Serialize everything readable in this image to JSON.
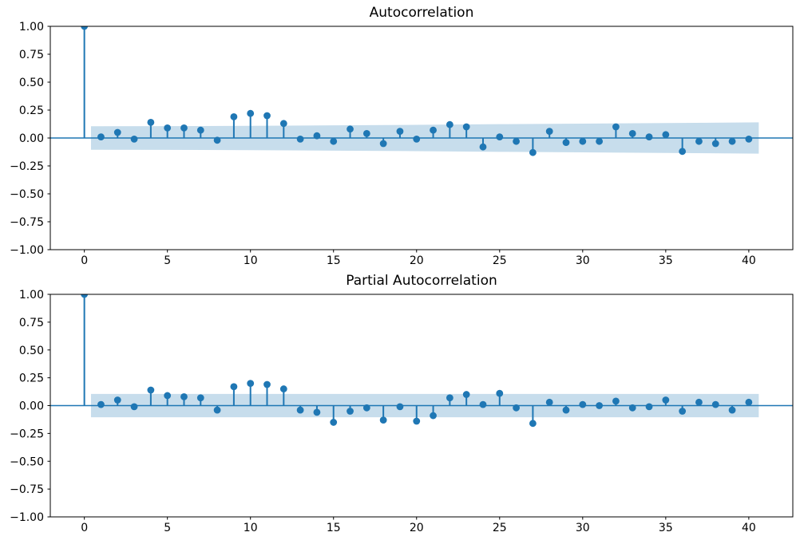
{
  "colors": {
    "accent": "#1f77b4",
    "band_fill": "#1f77b4",
    "band_opacity": 0.25,
    "spine": "#000000",
    "text": "#000000",
    "background": "#ffffff"
  },
  "chart_data": [
    {
      "type": "stem",
      "title": "Autocorrelation",
      "xlabel": "",
      "ylabel": "",
      "grid": false,
      "xlim": [
        -2.05,
        42.65
      ],
      "ylim": [
        -1.0,
        1.0
      ],
      "x": [
        0,
        1,
        2,
        3,
        4,
        5,
        6,
        7,
        8,
        9,
        10,
        11,
        12,
        13,
        14,
        15,
        16,
        17,
        18,
        19,
        20,
        21,
        22,
        23,
        24,
        25,
        26,
        27,
        28,
        29,
        30,
        31,
        32,
        33,
        34,
        35,
        36,
        37,
        38,
        39,
        40
      ],
      "values": [
        1.0,
        0.01,
        0.05,
        -0.01,
        0.14,
        0.09,
        0.09,
        0.07,
        -0.02,
        0.19,
        0.22,
        0.2,
        0.13,
        -0.01,
        0.02,
        -0.03,
        0.08,
        0.04,
        -0.05,
        0.06,
        -0.01,
        0.07,
        0.12,
        0.1,
        -0.08,
        0.01,
        -0.03,
        -0.13,
        0.06,
        -0.04,
        -0.03,
        -0.03,
        0.1,
        0.04,
        0.01,
        0.03,
        -0.12,
        -0.03,
        -0.05,
        -0.03,
        -0.01
      ],
      "xticks": {
        "values": [
          0,
          5,
          10,
          15,
          20,
          25,
          30,
          35,
          40
        ],
        "labels": [
          "0",
          "5",
          "10",
          "15",
          "20",
          "25",
          "30",
          "35",
          "40"
        ]
      },
      "yticks": {
        "values": [
          1.0,
          0.75,
          0.5,
          0.25,
          0.0,
          -0.25,
          -0.5,
          -0.75,
          -1.0
        ],
        "labels": [
          "1.00",
          "0.75",
          "0.50",
          "0.25",
          "0.00",
          "−0.25",
          "−0.50",
          "−0.75",
          "−1.00"
        ]
      },
      "conf_band": {
        "upper": [
          [
            0.4,
            0.105
          ],
          [
            5,
            0.106
          ],
          [
            10,
            0.109
          ],
          [
            15,
            0.113
          ],
          [
            20,
            0.118
          ],
          [
            25,
            0.124
          ],
          [
            30,
            0.129
          ],
          [
            35,
            0.134
          ],
          [
            40.6,
            0.14
          ]
        ],
        "lower": [
          [
            0.4,
            -0.105
          ],
          [
            5,
            -0.106
          ],
          [
            10,
            -0.109
          ],
          [
            15,
            -0.113
          ],
          [
            20,
            -0.118
          ],
          [
            25,
            -0.124
          ],
          [
            30,
            -0.129
          ],
          [
            35,
            -0.134
          ],
          [
            40.6,
            -0.14
          ]
        ]
      }
    },
    {
      "type": "stem",
      "title": "Partial Autocorrelation",
      "xlabel": "",
      "ylabel": "",
      "grid": false,
      "xlim": [
        -2.05,
        42.65
      ],
      "ylim": [
        -1.0,
        1.0
      ],
      "x": [
        0,
        1,
        2,
        3,
        4,
        5,
        6,
        7,
        8,
        9,
        10,
        11,
        12,
        13,
        14,
        15,
        16,
        17,
        18,
        19,
        20,
        21,
        22,
        23,
        24,
        25,
        26,
        27,
        28,
        29,
        30,
        31,
        32,
        33,
        34,
        35,
        36,
        37,
        38,
        39,
        40
      ],
      "values": [
        1.0,
        0.01,
        0.05,
        -0.01,
        0.14,
        0.09,
        0.08,
        0.07,
        -0.04,
        0.17,
        0.2,
        0.19,
        0.15,
        -0.04,
        -0.06,
        -0.15,
        -0.05,
        -0.02,
        -0.13,
        -0.01,
        -0.14,
        -0.09,
        0.07,
        0.1,
        0.01,
        0.11,
        -0.02,
        -0.16,
        0.03,
        -0.04,
        0.01,
        0.0,
        0.04,
        -0.02,
        -0.01,
        0.05,
        -0.05,
        0.03,
        0.01,
        -0.04,
        0.03
      ],
      "xticks": {
        "values": [
          0,
          5,
          10,
          15,
          20,
          25,
          30,
          35,
          40
        ],
        "labels": [
          "0",
          "5",
          "10",
          "15",
          "20",
          "25",
          "30",
          "35",
          "40"
        ]
      },
      "yticks": {
        "values": [
          1.0,
          0.75,
          0.5,
          0.25,
          0.0,
          -0.25,
          -0.5,
          -0.75,
          -1.0
        ],
        "labels": [
          "1.00",
          "0.75",
          "0.50",
          "0.25",
          "0.00",
          "−0.25",
          "−0.50",
          "−0.75",
          "−1.00"
        ]
      },
      "conf_band": {
        "upper": [
          [
            0.4,
            0.105
          ],
          [
            40.6,
            0.105
          ]
        ],
        "lower": [
          [
            0.4,
            -0.105
          ],
          [
            40.6,
            -0.105
          ]
        ]
      }
    }
  ]
}
